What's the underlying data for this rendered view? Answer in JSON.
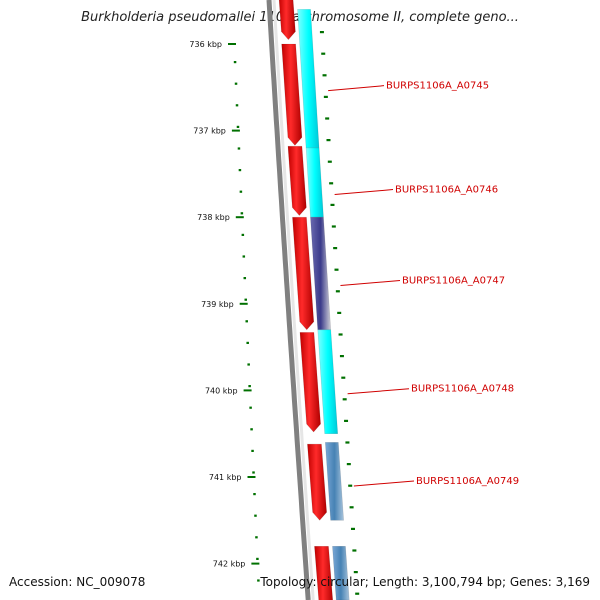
{
  "title": "Burkholderia pseudomallei 1106a chromosome II, complete geno...",
  "footer": {
    "accession": "Accession: NC_009078",
    "topology": "Topology: circular; Length: 3,100,794 bp; Genes: 3,169"
  },
  "scale_marks": [
    {
      "label": "736 kbp",
      "kbp": 736
    },
    {
      "label": "737 kbp",
      "kbp": 737
    },
    {
      "label": "738 kbp",
      "kbp": 738
    },
    {
      "label": "739 kbp",
      "kbp": 739
    },
    {
      "label": "740 kbp",
      "kbp": 740
    },
    {
      "label": "741 kbp",
      "kbp": 741
    },
    {
      "label": "742 kbp",
      "kbp": 742
    }
  ],
  "genes": [
    {
      "locus_tag": "BURPS1106A_A0745",
      "start_kbp": 735.6,
      "end_kbp": 737.2,
      "cog_color": "#00ffff"
    },
    {
      "locus_tag": "BURPS1106A_A0746",
      "start_kbp": 737.2,
      "end_kbp": 738.0,
      "cog_color": "#00ffff"
    },
    {
      "locus_tag": "BURPS1106A_A0747",
      "start_kbp": 738.0,
      "end_kbp": 739.3,
      "cog_color": "#3a3a8a"
    },
    {
      "locus_tag": "BURPS1106A_A0748",
      "start_kbp": 739.3,
      "end_kbp": 740.5,
      "cog_color": "#00ffff"
    },
    {
      "locus_tag": "BURPS1106A_A0749",
      "start_kbp": 740.6,
      "end_kbp": 741.5,
      "cog_color": "#4682b4"
    },
    {
      "locus_tag": "",
      "start_kbp": 741.8,
      "end_kbp": 742.5,
      "cog_color": "#4682b4"
    }
  ],
  "colors": {
    "forward_cds": "#ff0000",
    "backbone": "#808080",
    "tick": "#007000",
    "label": "#d00000"
  }
}
